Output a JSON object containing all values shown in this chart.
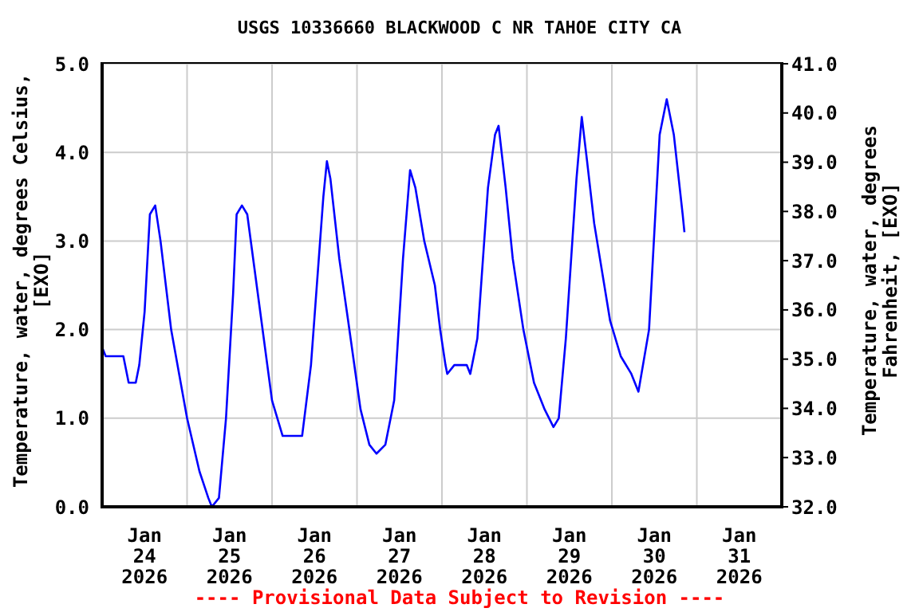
{
  "chart_data": {
    "type": "line",
    "title": "USGS 10336660 BLACKWOOD C NR TAHOE CITY CA",
    "ylabel": "Temperature, water, degrees Celsius, [EXO]",
    "y2label": "Temperature, water, degrees Fahrenheit, [EXO]",
    "annotations": [
      "---- Provisional Data Subject to Revision ----"
    ],
    "x": [
      "2026-01-24T00:00",
      "2026-01-24T01:00",
      "2026-01-24T06:00",
      "2026-01-24T07:30",
      "2026-01-24T09:30",
      "2026-01-24T10:30",
      "2026-01-24T12:00",
      "2026-01-24T13:30",
      "2026-01-24T15:00",
      "2026-01-24T16:30",
      "2026-01-24T19:30",
      "2026-01-25T00:00",
      "2026-01-25T03:30",
      "2026-01-25T06:00",
      "2026-01-25T07:00",
      "2026-01-25T09:00",
      "2026-01-25T11:00",
      "2026-01-25T13:00",
      "2026-01-25T14:00",
      "2026-01-25T15:30",
      "2026-01-25T17:00",
      "2026-01-25T19:00",
      "2026-01-25T21:00",
      "2026-01-26T00:00",
      "2026-01-26T03:00",
      "2026-01-26T08:30",
      "2026-01-26T11:00",
      "2026-01-26T14:30",
      "2026-01-26T15:30",
      "2026-01-26T16:30",
      "2026-01-26T19:00",
      "2026-01-26T21:30",
      "2026-01-27T01:00",
      "2026-01-27T03:30",
      "2026-01-27T05:30",
      "2026-01-27T08:00",
      "2026-01-27T10:30",
      "2026-01-27T13:00",
      "2026-01-27T15:00",
      "2026-01-27T16:30",
      "2026-01-27T19:00",
      "2026-01-27T22:00",
      "2026-01-27T23:30",
      "2026-01-28T01:00",
      "2026-01-28T01:30",
      "2026-01-28T03:30",
      "2026-01-28T07:00",
      "2026-01-28T08:00",
      "2026-01-28T10:00",
      "2026-01-28T13:00",
      "2026-01-28T15:00",
      "2026-01-28T16:00",
      "2026-01-28T18:00",
      "2026-01-28T20:00",
      "2026-01-28T23:00",
      "2026-01-29T02:00",
      "2026-01-29T05:00",
      "2026-01-29T07:30",
      "2026-01-29T09:00",
      "2026-01-29T11:00",
      "2026-01-29T14:00",
      "2026-01-29T15:30",
      "2026-01-29T17:00",
      "2026-01-29T19:00",
      "2026-01-29T23:30",
      "2026-01-30T02:30",
      "2026-01-30T05:30",
      "2026-01-30T07:30",
      "2026-01-30T10:30",
      "2026-01-30T13:30",
      "2026-01-30T15:30",
      "2026-01-30T17:30",
      "2026-01-30T20:00",
      "2026-01-30T20:30"
    ],
    "series": [
      {
        "color": "#0000ff",
        "values": [
          1.8,
          1.7,
          1.7,
          1.4,
          1.4,
          1.6,
          2.2,
          3.3,
          3.4,
          3.0,
          2.0,
          1.0,
          0.4,
          0.1,
          0.0,
          0.1,
          1.0,
          2.4,
          3.3,
          3.4,
          3.3,
          2.7,
          2.1,
          1.2,
          0.8,
          0.8,
          1.6,
          3.5,
          3.9,
          3.7,
          2.8,
          2.1,
          1.1,
          0.7,
          0.6,
          0.7,
          1.2,
          2.8,
          3.8,
          3.6,
          3.0,
          2.5,
          2.0,
          1.6,
          1.5,
          1.6,
          1.6,
          1.5,
          1.9,
          3.6,
          4.2,
          4.3,
          3.6,
          2.8,
          2.0,
          1.4,
          1.1,
          0.9,
          1.0,
          1.9,
          3.7,
          4.4,
          3.9,
          3.2,
          2.1,
          1.7,
          1.5,
          1.3,
          2.0,
          4.2,
          4.6,
          4.2,
          3.3,
          3.1
        ]
      }
    ],
    "xlim": [
      "2026-01-24T00:00",
      "2026-02-01T00:00"
    ],
    "xticks": [
      {
        "value": "2026-01-24T12:00",
        "label": "Jan\n24\n2026"
      },
      {
        "value": "2026-01-25T00:00",
        "label": null
      },
      {
        "value": "2026-01-25T12:00",
        "label": "Jan\n25\n2026"
      },
      {
        "value": "2026-01-26T00:00",
        "label": null
      },
      {
        "value": "2026-01-26T12:00",
        "label": "Jan\n26\n2026"
      },
      {
        "value": "2026-01-27T00:00",
        "label": null
      },
      {
        "value": "2026-01-27T12:00",
        "label": "Jan\n27\n2026"
      },
      {
        "value": "2026-01-28T00:00",
        "label": null
      },
      {
        "value": "2026-01-28T12:00",
        "label": "Jan\n28\n2026"
      },
      {
        "value": "2026-01-29T00:00",
        "label": null
      },
      {
        "value": "2026-01-29T12:00",
        "label": "Jan\n29\n2026"
      },
      {
        "value": "2026-01-30T00:00",
        "label": null
      },
      {
        "value": "2026-01-30T12:00",
        "label": "Jan\n30\n2026"
      },
      {
        "value": "2026-01-31T00:00",
        "label": null
      },
      {
        "value": "2026-01-31T12:00",
        "label": "Jan\n31\n2026"
      }
    ],
    "ylim": [
      0,
      5
    ],
    "yticks": [
      {
        "value": 0,
        "label": "0.0"
      },
      {
        "value": 1,
        "label": "1.0"
      },
      {
        "value": 2,
        "label": "2.0"
      },
      {
        "value": 3,
        "label": "3.0"
      },
      {
        "value": 4,
        "label": "4.0"
      },
      {
        "value": 5,
        "label": "5.0"
      }
    ],
    "y2lim": [
      32,
      41
    ],
    "y2ticks": [
      {
        "value": 32,
        "label": "32.0"
      },
      {
        "value": 33,
        "label": "33.0"
      },
      {
        "value": 34,
        "label": "34.0"
      },
      {
        "value": 35,
        "label": "35.0"
      },
      {
        "value": 36,
        "label": "36.0"
      },
      {
        "value": 37,
        "label": "37.0"
      },
      {
        "value": 38,
        "label": "38.0"
      },
      {
        "value": 39,
        "label": "39.0"
      },
      {
        "value": 40,
        "label": "40.0"
      },
      {
        "value": 41,
        "label": "41.0"
      }
    ],
    "grid": true,
    "legend": false,
    "marker": "none",
    "line_style": "solid"
  }
}
